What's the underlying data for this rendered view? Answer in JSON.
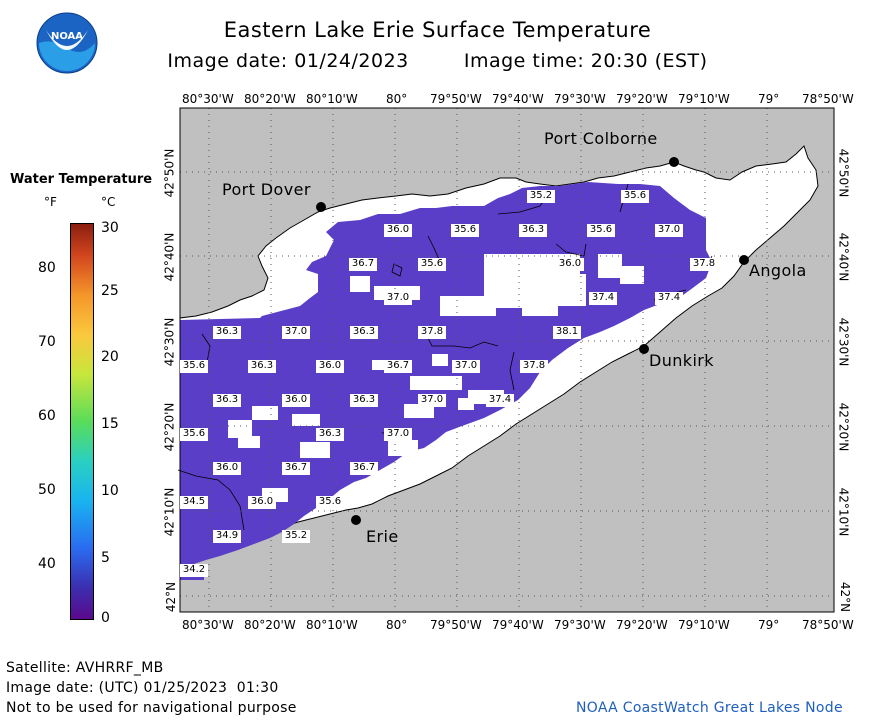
{
  "header": {
    "title": "Eastern Lake Erie Surface Temperature",
    "date_label": "Image date: 01/24/2023",
    "time_label": "Image time: 20:30 (EST)"
  },
  "logo": {
    "text": "NOAA"
  },
  "legend": {
    "title": "Water Temperature",
    "unit_f": "°F",
    "unit_c": "°C",
    "f_ticks": [
      "80",
      "70",
      "60",
      "50",
      "40"
    ],
    "c_ticks": [
      "30",
      "25",
      "20",
      "15",
      "10",
      "5",
      "0"
    ]
  },
  "axes": {
    "lon_labels": [
      "80°30'W",
      "80°20'W",
      "80°10'W",
      "80°",
      "79°50'W",
      "79°40'W",
      "79°30'W",
      "79°20'W",
      "79°10'W",
      "79°",
      "78°50'W"
    ],
    "lat_labels": [
      "42°50'N",
      "42°40'N",
      "42°30'N",
      "42°20'N",
      "42°10'N",
      "42°N"
    ]
  },
  "cities": [
    "Port Colborne",
    "Port Dover",
    "Angola",
    "Dunkirk",
    "Erie"
  ],
  "temperature_labels": [
    {
      "v": "35.2"
    },
    {
      "v": "35.6"
    },
    {
      "v": "36.0"
    },
    {
      "v": "35.6"
    },
    {
      "v": "36.3"
    },
    {
      "v": "35.6"
    },
    {
      "v": "37.0"
    },
    {
      "v": "36.7"
    },
    {
      "v": "35.6"
    },
    {
      "v": "36.0"
    },
    {
      "v": "37.8"
    },
    {
      "v": "37.0"
    },
    {
      "v": "37.4"
    },
    {
      "v": "37.4"
    },
    {
      "v": "36.3"
    },
    {
      "v": "37.0"
    },
    {
      "v": "36.3"
    },
    {
      "v": "37.8"
    },
    {
      "v": "38.1"
    },
    {
      "v": "35.6"
    },
    {
      "v": "36.3"
    },
    {
      "v": "36.0"
    },
    {
      "v": "36.7"
    },
    {
      "v": "37.0"
    },
    {
      "v": "37.8"
    },
    {
      "v": "36.3"
    },
    {
      "v": "36.0"
    },
    {
      "v": "36.3"
    },
    {
      "v": "37.0"
    },
    {
      "v": "37.4"
    },
    {
      "v": "35.6"
    },
    {
      "v": "36.3"
    },
    {
      "v": "37.0"
    },
    {
      "v": "36.0"
    },
    {
      "v": "36.7"
    },
    {
      "v": "36.7"
    },
    {
      "v": "34.5"
    },
    {
      "v": "36.0"
    },
    {
      "v": "35.6"
    },
    {
      "v": "34.9"
    },
    {
      "v": "35.2"
    },
    {
      "v": "34.2"
    }
  ],
  "footer": {
    "satellite": "Satellite: AVHRRF_MB",
    "utc": "Image date: (UTC) 01/25/2023  01:30",
    "disclaimer": "Not to be used for navigational purpose",
    "credit": "NOAA CoastWatch Great Lakes Node"
  },
  "colors": {
    "land": "#c0c0c0",
    "lake_nodata": "#ffffff",
    "water_main": "#5a3ec8",
    "water_dark": "#4b2fb0",
    "credit": "#1f5fbf"
  }
}
